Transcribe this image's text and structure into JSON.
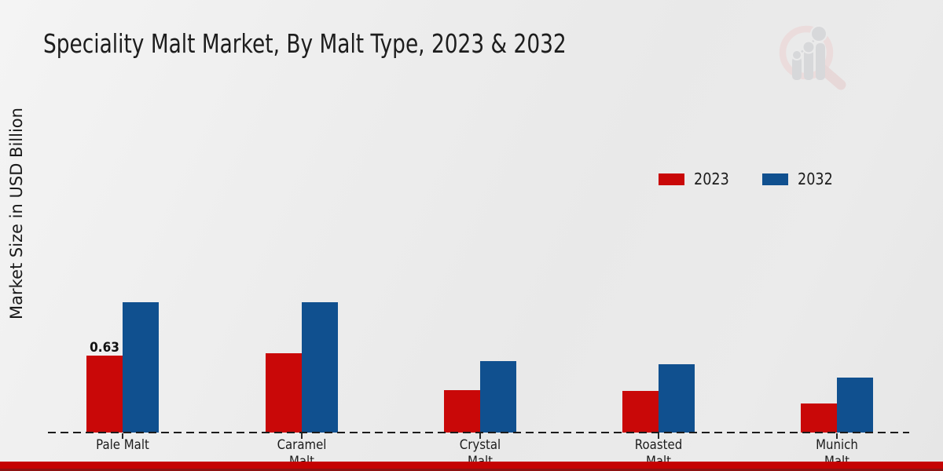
{
  "title": "Speciality Malt Market, By Malt Type, 2023 & 2032",
  "y_axis_label": "Market Size in USD Billion",
  "legend": {
    "items": [
      {
        "label": "2023",
        "color": "#c90808"
      },
      {
        "label": "2032",
        "color": "#10508f"
      }
    ]
  },
  "colors": {
    "series_2023": "#c90808",
    "series_2032": "#10508f",
    "bottom_strip": "#c50303",
    "background": "#ececec",
    "text": "#1c1c1c"
  },
  "watermark": {
    "name": "market-research-magnifier-logo"
  },
  "chart_data": {
    "type": "bar",
    "title": "Speciality Malt Market, By Malt Type, 2023 & 2032",
    "ylabel": "Market Size in USD Billion",
    "xlabel": "",
    "categories": [
      "Pale Malt",
      "Caramel Malt",
      "Crystal Malt",
      "Roasted Malt",
      "Munich Malt"
    ],
    "category_label_lines": [
      [
        "Pale Malt"
      ],
      [
        "Caramel",
        "Malt"
      ],
      [
        "Crystal",
        "Malt"
      ],
      [
        "Roasted",
        "Malt"
      ],
      [
        "Munich",
        "Malt"
      ]
    ],
    "series": [
      {
        "name": "2023",
        "color": "#c90808",
        "values": [
          0.63,
          0.65,
          0.35,
          0.34,
          0.24
        ]
      },
      {
        "name": "2032",
        "color": "#10508f",
        "values": [
          1.07,
          1.07,
          0.59,
          0.56,
          0.45
        ]
      }
    ],
    "value_labels": [
      {
        "series": "2023",
        "category": "Pale Malt",
        "text": "0.63"
      }
    ],
    "ylim": [
      0,
      1.3
    ],
    "grid": false,
    "baseline_style": "dashed",
    "legend_position": "upper-right"
  }
}
